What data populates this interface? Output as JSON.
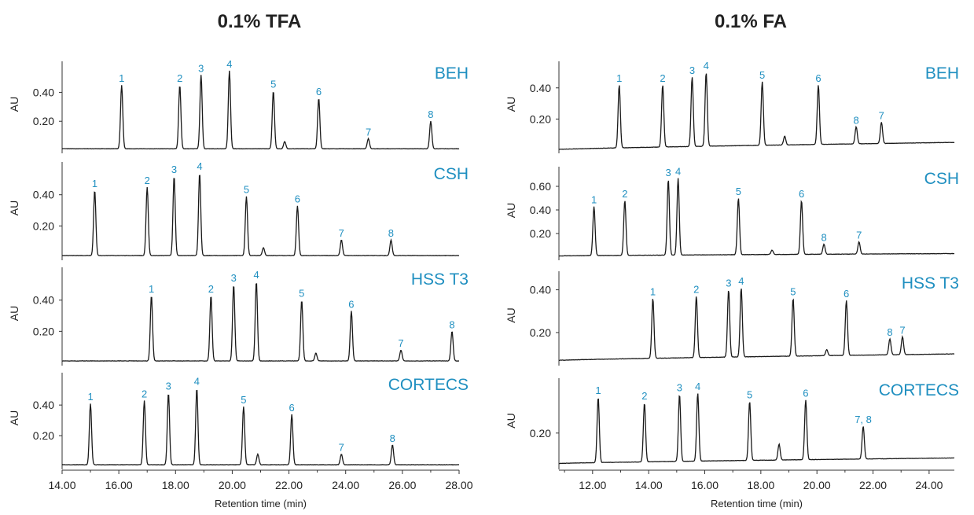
{
  "panels": [
    {
      "title": "0.1% TFA",
      "xlabel": "Retention time (min)",
      "ylabel": "AU",
      "xlim": [
        14.0,
        28.0
      ],
      "xticks": [
        "14.00",
        "16.00",
        "18.00",
        "20.00",
        "22.00",
        "24.00",
        "26.00",
        "28.00"
      ]
    },
    {
      "title": "0.1% FA",
      "xlabel": "Retention time (min)",
      "ylabel": "AU",
      "xlim": [
        10.8,
        24.9
      ],
      "xticks": [
        "12.00",
        "14.00",
        "16.00",
        "18.00",
        "20.00",
        "22.00",
        "24.00"
      ]
    }
  ],
  "colors": {
    "label": "#1f8fc0",
    "trace": "#1a1a1a",
    "axis": "#333333"
  },
  "chart_data": [
    {
      "type": "line",
      "panel": 0,
      "title": "BEH",
      "ylim": [
        0,
        0.56
      ],
      "yticks": [
        "0.40",
        "0.20"
      ],
      "ytick_values": [
        0.4,
        0.2
      ],
      "baseline": 0.01,
      "peaks": [
        {
          "label": "1",
          "x": 16.1,
          "y": 0.45
        },
        {
          "label": "2",
          "x": 18.15,
          "y": 0.45
        },
        {
          "label": "3",
          "x": 18.9,
          "y": 0.52
        },
        {
          "label": "4",
          "x": 19.9,
          "y": 0.55
        },
        {
          "label": "5",
          "x": 21.45,
          "y": 0.41
        },
        {
          "label": "6",
          "x": 23.05,
          "y": 0.36
        },
        {
          "label": "7",
          "x": 24.8,
          "y": 0.08
        },
        {
          "label": "8",
          "x": 27.0,
          "y": 0.2
        }
      ],
      "minor_peaks": [
        {
          "x": 21.85,
          "y": 0.06
        }
      ]
    },
    {
      "type": "line",
      "panel": 0,
      "title": "CSH",
      "ylim": [
        0,
        0.56
      ],
      "yticks": [
        "0.40",
        "0.20"
      ],
      "ytick_values": [
        0.4,
        0.2
      ],
      "baseline": 0.01,
      "peaks": [
        {
          "label": "1",
          "x": 15.15,
          "y": 0.43
        },
        {
          "label": "2",
          "x": 17.0,
          "y": 0.45
        },
        {
          "label": "3",
          "x": 17.95,
          "y": 0.52
        },
        {
          "label": "4",
          "x": 18.85,
          "y": 0.54
        },
        {
          "label": "5",
          "x": 20.5,
          "y": 0.39
        },
        {
          "label": "6",
          "x": 22.3,
          "y": 0.33
        },
        {
          "label": "7",
          "x": 23.85,
          "y": 0.11
        },
        {
          "label": "8",
          "x": 25.6,
          "y": 0.11
        }
      ],
      "minor_peaks": [
        {
          "x": 21.1,
          "y": 0.06
        }
      ]
    },
    {
      "type": "line",
      "panel": 0,
      "title": "HSS T3",
      "ylim": [
        0,
        0.56
      ],
      "yticks": [
        "0.40",
        "0.20"
      ],
      "ytick_values": [
        0.4,
        0.2
      ],
      "baseline": 0.01,
      "peaks": [
        {
          "label": "1",
          "x": 17.15,
          "y": 0.43
        },
        {
          "label": "2",
          "x": 19.25,
          "y": 0.43
        },
        {
          "label": "3",
          "x": 20.05,
          "y": 0.5
        },
        {
          "label": "4",
          "x": 20.85,
          "y": 0.52
        },
        {
          "label": "5",
          "x": 22.45,
          "y": 0.4
        },
        {
          "label": "6",
          "x": 24.2,
          "y": 0.33
        },
        {
          "label": "7",
          "x": 25.95,
          "y": 0.08
        },
        {
          "label": "8",
          "x": 27.75,
          "y": 0.2
        }
      ],
      "minor_peaks": [
        {
          "x": 22.95,
          "y": 0.06
        }
      ]
    },
    {
      "type": "line",
      "panel": 0,
      "title": "CORTECS",
      "ylim": [
        0,
        0.56
      ],
      "yticks": [
        "0.40",
        "0.20"
      ],
      "ytick_values": [
        0.4,
        0.2
      ],
      "baseline": 0.01,
      "peaks": [
        {
          "label": "1",
          "x": 15.0,
          "y": 0.41
        },
        {
          "label": "2",
          "x": 16.9,
          "y": 0.43
        },
        {
          "label": "3",
          "x": 17.75,
          "y": 0.48
        },
        {
          "label": "4",
          "x": 18.75,
          "y": 0.51
        },
        {
          "label": "5",
          "x": 20.4,
          "y": 0.39
        },
        {
          "label": "6",
          "x": 22.1,
          "y": 0.34
        },
        {
          "label": "7",
          "x": 23.85,
          "y": 0.08
        },
        {
          "label": "8",
          "x": 25.65,
          "y": 0.14
        }
      ],
      "minor_peaks": [
        {
          "x": 20.9,
          "y": 0.08
        }
      ]
    },
    {
      "type": "line",
      "panel": 1,
      "title": "BEH",
      "ylim": [
        0,
        0.52
      ],
      "yticks": [
        "0.40",
        "0.20"
      ],
      "ytick_values": [
        0.4,
        0.2
      ],
      "baseline": [
        0.005,
        0.05
      ],
      "peaks": [
        {
          "label": "1",
          "x": 12.95,
          "y": 0.42
        },
        {
          "label": "2",
          "x": 14.5,
          "y": 0.42
        },
        {
          "label": "3",
          "x": 15.55,
          "y": 0.47
        },
        {
          "label": "4",
          "x": 16.05,
          "y": 0.5
        },
        {
          "label": "5",
          "x": 18.05,
          "y": 0.44
        },
        {
          "label": "6",
          "x": 20.05,
          "y": 0.42
        },
        {
          "label": "8",
          "x": 21.4,
          "y": 0.15
        },
        {
          "label": "7",
          "x": 22.3,
          "y": 0.18
        }
      ],
      "minor_peaks": [
        {
          "x": 18.85,
          "y": 0.09
        }
      ]
    },
    {
      "type": "line",
      "panel": 1,
      "title": "CSH",
      "ylim": [
        0,
        0.7
      ],
      "yticks": [
        "0.60",
        "0.40",
        "0.20"
      ],
      "ytick_values": [
        0.6,
        0.4,
        0.2
      ],
      "baseline": [
        0.01,
        0.03
      ],
      "peaks": [
        {
          "label": "1",
          "x": 12.05,
          "y": 0.43
        },
        {
          "label": "2",
          "x": 13.15,
          "y": 0.48
        },
        {
          "label": "3",
          "x": 14.7,
          "y": 0.66
        },
        {
          "label": "4",
          "x": 15.05,
          "y": 0.67
        },
        {
          "label": "5",
          "x": 17.2,
          "y": 0.5
        },
        {
          "label": "6",
          "x": 19.45,
          "y": 0.48
        },
        {
          "label": "8",
          "x": 20.25,
          "y": 0.11
        },
        {
          "label": "7",
          "x": 21.5,
          "y": 0.13
        }
      ],
      "minor_peaks": [
        {
          "x": 18.4,
          "y": 0.06
        }
      ]
    },
    {
      "type": "line",
      "panel": 1,
      "title": "HSS T3",
      "ylim": [
        0.06,
        0.45
      ],
      "yticks": [
        "0.40",
        "0.20"
      ],
      "ytick_values": [
        0.4,
        0.2
      ],
      "baseline": [
        0.07,
        0.1
      ],
      "peaks": [
        {
          "label": "1",
          "x": 14.15,
          "y": 0.36
        },
        {
          "label": "2",
          "x": 15.7,
          "y": 0.37
        },
        {
          "label": "3",
          "x": 16.85,
          "y": 0.4
        },
        {
          "label": "4",
          "x": 17.3,
          "y": 0.41
        },
        {
          "label": "5",
          "x": 19.15,
          "y": 0.36
        },
        {
          "label": "6",
          "x": 21.05,
          "y": 0.35
        },
        {
          "label": "8",
          "x": 22.6,
          "y": 0.17
        },
        {
          "label": "7",
          "x": 23.05,
          "y": 0.18
        }
      ],
      "minor_peaks": [
        {
          "x": 20.35,
          "y": 0.12
        }
      ]
    },
    {
      "type": "line",
      "panel": 1,
      "title": "CORTECS",
      "ylim": [
        0.08,
        0.37
      ],
      "yticks": [
        "0.20"
      ],
      "ytick_values": [
        0.2
      ],
      "baseline": [
        0.09,
        0.11
      ],
      "peaks": [
        {
          "label": "1",
          "x": 12.2,
          "y": 0.33
        },
        {
          "label": "2",
          "x": 13.85,
          "y": 0.31
        },
        {
          "label": "3",
          "x": 15.1,
          "y": 0.34
        },
        {
          "label": "4",
          "x": 15.75,
          "y": 0.345
        },
        {
          "label": "5",
          "x": 17.6,
          "y": 0.315
        },
        {
          "label": "6",
          "x": 19.6,
          "y": 0.32
        },
        {
          "label": "7, 8",
          "x": 21.65,
          "y": 0.225
        }
      ],
      "minor_peaks": [
        {
          "x": 18.65,
          "y": 0.16
        }
      ]
    }
  ]
}
